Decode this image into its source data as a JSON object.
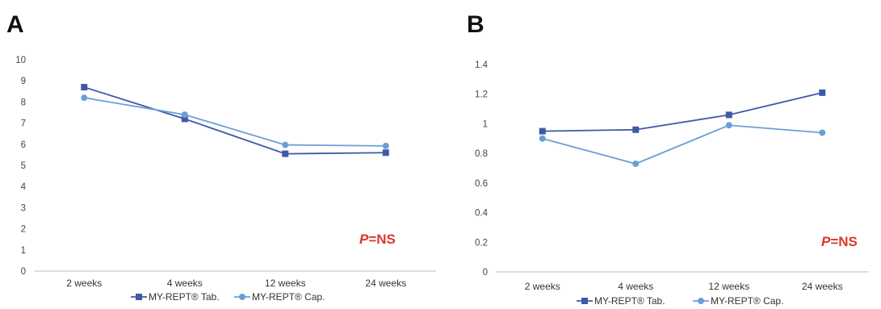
{
  "colors": {
    "tab": "#3f59a8",
    "cap": "#6a9fd6",
    "axis": "#bfbfbf",
    "annotation": "#d9382c"
  },
  "chart_data": [
    {
      "panel": "A",
      "type": "line",
      "categories": [
        "2 weeks",
        "4 weeks",
        "12 weeks",
        "24 weeks"
      ],
      "ylim": [
        0,
        10
      ],
      "yticks": [
        "0",
        "1",
        "2",
        "3",
        "4",
        "5",
        "6",
        "7",
        "8",
        "9",
        "10"
      ],
      "grid": false,
      "legend": "bottom",
      "annotation": {
        "p": "P",
        "rest": "=NS"
      },
      "series": [
        {
          "name": "MY-REPT® Tab.",
          "marker": "square",
          "values": [
            8.7,
            7.2,
            5.55,
            5.6
          ]
        },
        {
          "name": "MY-REPT® Cap.",
          "marker": "circle",
          "values": [
            8.2,
            7.4,
            5.97,
            5.92
          ]
        }
      ]
    },
    {
      "panel": "B",
      "type": "line",
      "categories": [
        "2 weeks",
        "4 weeks",
        "12 weeks",
        "24 weeks"
      ],
      "ylim": [
        0,
        1.4
      ],
      "yticks": [
        "0",
        "0.2",
        "0.4",
        "0.6",
        "0.8",
        "1",
        "1.2",
        "1.4"
      ],
      "grid": false,
      "legend": "bottom",
      "annotation": {
        "p": "P",
        "rest": "=NS"
      },
      "series": [
        {
          "name": "MY-REPT® Tab.",
          "marker": "square",
          "values": [
            0.95,
            0.96,
            1.06,
            1.21
          ]
        },
        {
          "name": "MY-REPT® Cap.",
          "marker": "circle",
          "values": [
            0.9,
            0.73,
            0.99,
            0.94
          ]
        }
      ]
    }
  ]
}
